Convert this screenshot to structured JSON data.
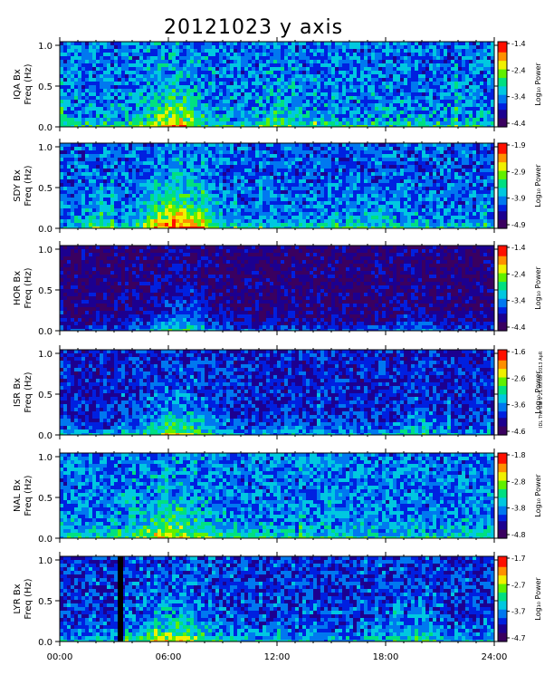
{
  "title": "20121023 y axis",
  "side_note": "IDL The GW 2 21:05:08 2013 ApR",
  "colors": {
    "spectrum": [
      "#3a0060",
      "#1c0090",
      "#0020e0",
      "#0078f0",
      "#00c8e0",
      "#00e080",
      "#60f000",
      "#f0f000",
      "#ff9000",
      "#ff1000"
    ]
  },
  "chart_data": {
    "type": "heatmap",
    "x_ticks": [
      "00:00",
      "06:00",
      "12:00",
      "18:00",
      "24:00"
    ],
    "xlim": [
      0,
      24
    ],
    "x_unit": "hours UT",
    "y_ticks": [
      "0.0",
      "0.5",
      "1.0"
    ],
    "ylim": [
      0,
      1.0
    ],
    "colorbar_label": "Log₁₀ Power",
    "panels": [
      {
        "station": "IQA Bx",
        "ylabel": "Freq (Hz)",
        "cbar_ticks": [
          "-1.4",
          "-2.4",
          "-3.4",
          "-4.4"
        ],
        "cmin": -4.4,
        "cmax": -1.4,
        "base": 0.34,
        "noise": 0.16,
        "events": [
          {
            "t": 6.2,
            "w": 1.5,
            "amp": 0.35
          },
          {
            "t": 12.0,
            "w": 1.0,
            "amp": 0.12
          }
        ],
        "gap": null
      },
      {
        "station": "SDY Bx",
        "ylabel": "Freq (Hz)",
        "cbar_ticks": [
          "-1.9",
          "-2.9",
          "-3.9",
          "-4.9"
        ],
        "cmin": -4.9,
        "cmax": -1.9,
        "base": 0.3,
        "noise": 0.14,
        "events": [
          {
            "t": 6.5,
            "w": 1.8,
            "amp": 0.55
          },
          {
            "t": 2.0,
            "w": 0.8,
            "amp": 0.15
          },
          {
            "t": 17.0,
            "w": 3.0,
            "amp": 0.08
          }
        ],
        "gap": null
      },
      {
        "station": "HOR Bx",
        "ylabel": "Freq (Hz)",
        "cbar_ticks": [
          "-1.4",
          "-2.4",
          "-3.4",
          "-4.4"
        ],
        "cmin": -4.4,
        "cmax": -1.4,
        "base": 0.1,
        "noise": 0.12,
        "events": [
          {
            "t": 6.5,
            "w": 2.0,
            "amp": 0.3
          },
          {
            "t": 19.8,
            "w": 1.2,
            "amp": 0.12
          }
        ],
        "gap": null
      },
      {
        "station": "ISR Bx",
        "ylabel": "Freq (Hz)",
        "cbar_ticks": [
          "-1.6",
          "-2.6",
          "-3.6",
          "-4.6"
        ],
        "cmin": -4.6,
        "cmax": -1.6,
        "base": 0.22,
        "noise": 0.13,
        "events": [
          {
            "t": 6.4,
            "w": 1.8,
            "amp": 0.35
          },
          {
            "t": 19.8,
            "w": 1.0,
            "amp": 0.12
          }
        ],
        "gap": null
      },
      {
        "station": "NAL Bx",
        "ylabel": "Freq (Hz)",
        "cbar_ticks": [
          "-1.8",
          "-2.8",
          "-3.8",
          "-4.8"
        ],
        "cmin": -4.8,
        "cmax": -1.8,
        "base": 0.34,
        "noise": 0.15,
        "events": [
          {
            "t": 6.0,
            "w": 2.0,
            "amp": 0.28
          }
        ],
        "gap": null
      },
      {
        "station": "LYR Bx",
        "ylabel": "Freq (Hz)",
        "cbar_ticks": [
          "-1.7",
          "-2.7",
          "-3.7",
          "-4.7"
        ],
        "cmin": -4.7,
        "cmax": -1.7,
        "base": 0.26,
        "noise": 0.15,
        "events": [
          {
            "t": 6.3,
            "w": 2.0,
            "amp": 0.32
          },
          {
            "t": 19.8,
            "w": 1.2,
            "amp": 0.12
          }
        ],
        "gap": [
          3.2,
          3.5
        ]
      }
    ]
  }
}
